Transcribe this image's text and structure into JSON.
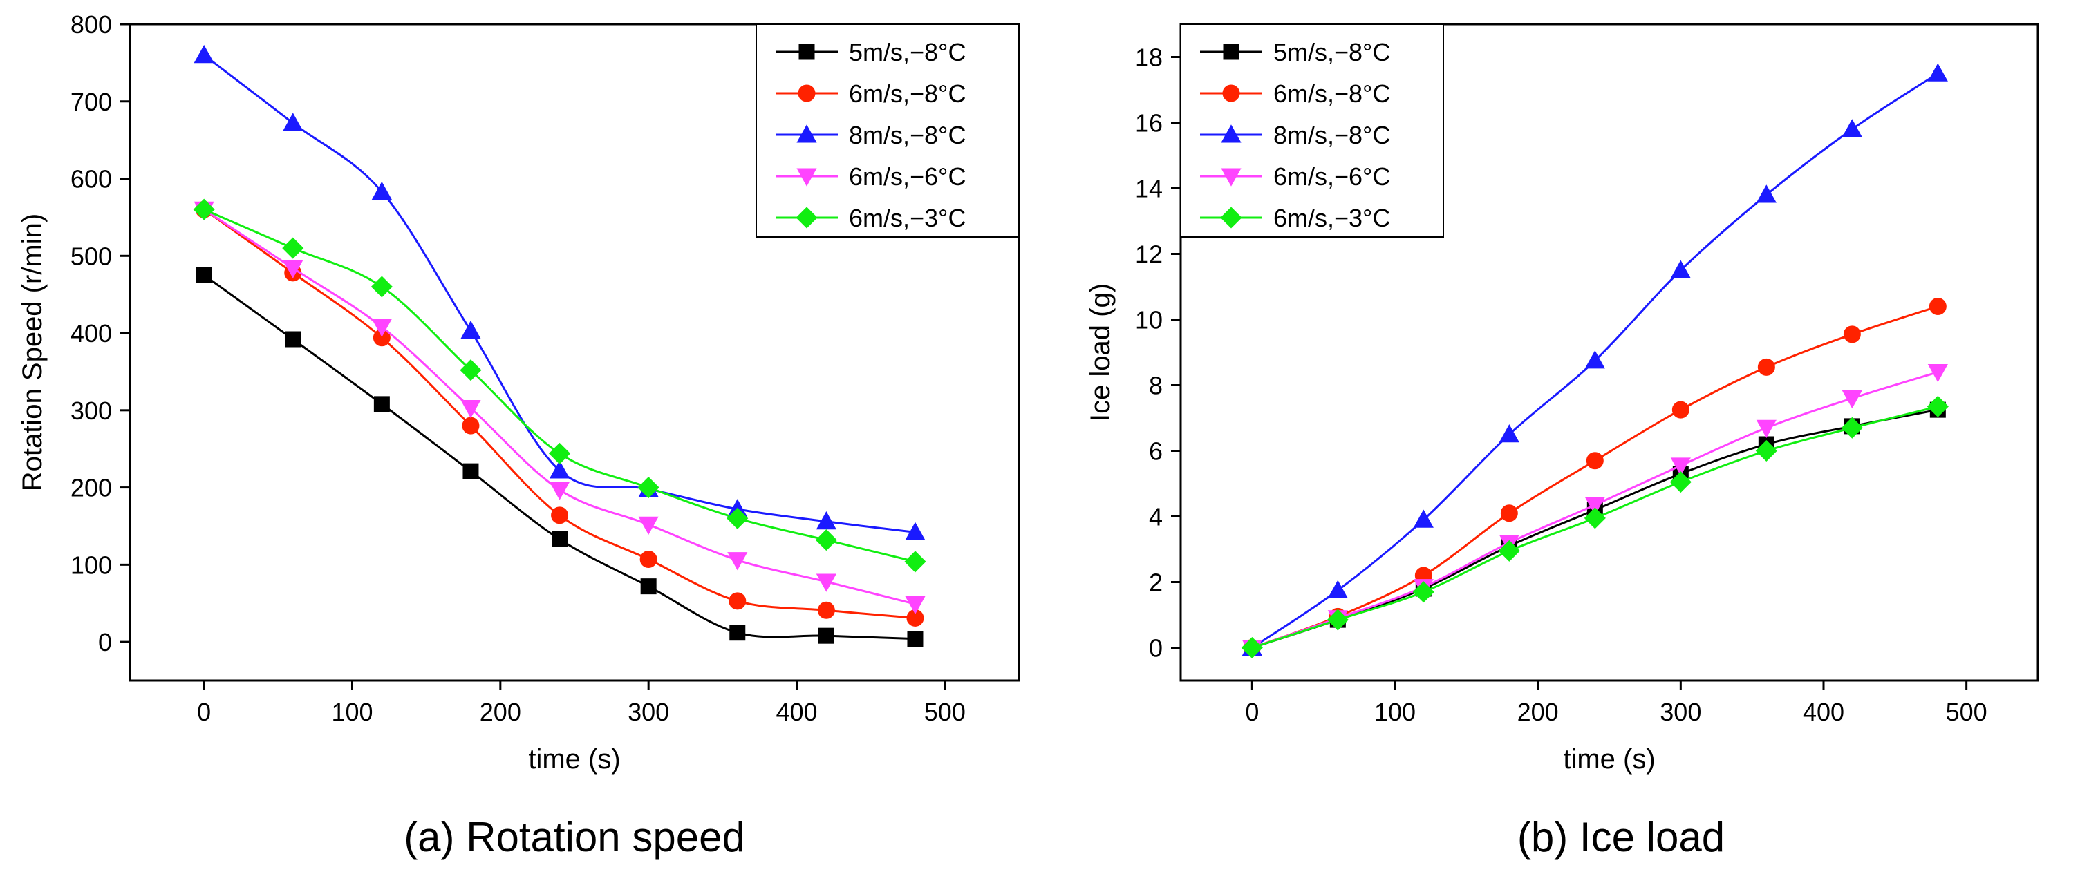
{
  "chart_data": [
    {
      "type": "line",
      "id": "a",
      "caption": "(a) Rotation speed",
      "xlabel": "time (s)",
      "ylabel": "Rotation Speed (r/min)",
      "xlim": [
        -50,
        550
      ],
      "ylim": [
        -50,
        800
      ],
      "xticks": [
        0,
        100,
        200,
        300,
        400,
        500
      ],
      "yticks": [
        0,
        100,
        200,
        300,
        400,
        500,
        600,
        700,
        800
      ],
      "x": [
        0,
        60,
        120,
        180,
        240,
        300,
        360,
        420,
        480
      ],
      "legend_position": "top-right",
      "series": [
        {
          "name": "5m/s,−8°C",
          "color": "#000000",
          "marker": "square",
          "values": [
            475,
            392,
            308,
            221,
            133,
            72,
            12,
            8,
            4
          ]
        },
        {
          "name": "6m/s,−8°C",
          "color": "#ff2200",
          "marker": "circle",
          "values": [
            560,
            478,
            394,
            280,
            164,
            107,
            53,
            41,
            31
          ]
        },
        {
          "name": "8m/s,−8°C",
          "color": "#1a1aff",
          "marker": "triangle-up",
          "values": [
            760,
            672,
            583,
            403,
            222,
            198,
            172,
            156,
            142
          ]
        },
        {
          "name": "6m/s,−6°C",
          "color": "#ff44ff",
          "marker": "triangle-down",
          "values": [
            560,
            484,
            408,
            303,
            197,
            152,
            106,
            78,
            49
          ]
        },
        {
          "name": "6m/s,−3°C",
          "color": "#11ee11",
          "marker": "diamond",
          "values": [
            560,
            510,
            460,
            352,
            244,
            200,
            160,
            132,
            104
          ]
        }
      ]
    },
    {
      "type": "line",
      "id": "b",
      "caption": "(b) Ice load",
      "xlabel": "time (s)",
      "ylabel": "Ice load (g)",
      "xlim": [
        -50,
        550
      ],
      "ylim": [
        -1,
        19
      ],
      "xticks": [
        0,
        100,
        200,
        300,
        400,
        500
      ],
      "yticks": [
        0,
        2,
        4,
        6,
        8,
        10,
        12,
        14,
        16,
        18
      ],
      "x": [
        0,
        60,
        120,
        180,
        240,
        300,
        360,
        420,
        480
      ],
      "legend_position": "top-left",
      "series": [
        {
          "name": "5m/s,−8°C",
          "color": "#000000",
          "marker": "square",
          "values": [
            0,
            0.85,
            1.8,
            3.1,
            4.2,
            5.3,
            6.2,
            6.75,
            7.25
          ]
        },
        {
          "name": "6m/s,−8°C",
          "color": "#ff2200",
          "marker": "circle",
          "values": [
            0,
            0.95,
            2.2,
            4.1,
            5.7,
            7.25,
            8.55,
            9.55,
            10.4
          ]
        },
        {
          "name": "8m/s,−8°C",
          "color": "#1a1aff",
          "marker": "triangle-up",
          "values": [
            0,
            1.75,
            3.9,
            6.5,
            8.75,
            11.5,
            13.8,
            15.8,
            17.5
          ]
        },
        {
          "name": "6m/s,−6°C",
          "color": "#ff44ff",
          "marker": "triangle-down",
          "values": [
            0,
            0.9,
            1.85,
            3.2,
            4.35,
            5.55,
            6.7,
            7.6,
            8.4
          ]
        },
        {
          "name": "6m/s,−3°C",
          "color": "#11ee11",
          "marker": "diamond",
          "values": [
            0,
            0.85,
            1.7,
            2.95,
            3.95,
            5.05,
            6.0,
            6.7,
            7.35
          ]
        }
      ]
    }
  ]
}
